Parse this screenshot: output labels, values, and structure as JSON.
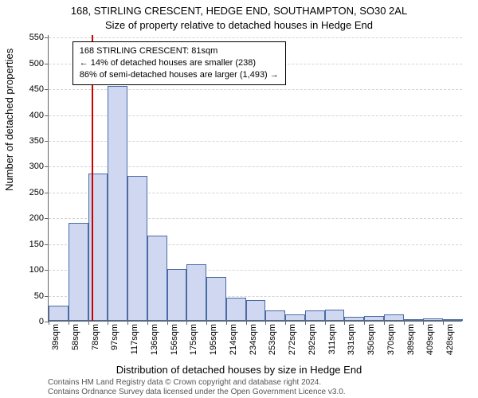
{
  "title_line1": "168, STIRLING CRESCENT, HEDGE END, SOUTHAMPTON, SO30 2AL",
  "title_line2": "Size of property relative to detached houses in Hedge End",
  "y_axis_label": "Number of detached properties",
  "x_axis_label": "Distribution of detached houses by size in Hedge End",
  "footer_line1": "Contains HM Land Registry data © Crown copyright and database right 2024.",
  "footer_line2": "Contains Ordnance Survey data licensed under the Open Government Licence v3.0.",
  "info_box": {
    "line1": "168 STIRLING CRESCENT: 81sqm",
    "line2": "← 14% of detached houses are smaller (238)",
    "line3": "86% of semi-detached houses are larger (1,493) →"
  },
  "chart": {
    "type": "histogram",
    "ylim": [
      0,
      555
    ],
    "yticks": [
      0,
      50,
      100,
      150,
      200,
      250,
      300,
      350,
      400,
      450,
      500,
      550
    ],
    "xticks": [
      "39sqm",
      "58sqm",
      "78sqm",
      "97sqm",
      "117sqm",
      "136sqm",
      "156sqm",
      "175sqm",
      "195sqm",
      "214sqm",
      "234sqm",
      "253sqm",
      "272sqm",
      "292sqm",
      "311sqm",
      "331sqm",
      "350sqm",
      "370sqm",
      "389sqm",
      "409sqm",
      "428sqm"
    ],
    "values": [
      30,
      190,
      285,
      455,
      280,
      165,
      100,
      110,
      85,
      45,
      40,
      20,
      13,
      20,
      22,
      8,
      10,
      12,
      3,
      5,
      3
    ],
    "bar_fill": "#cfd8f0",
    "bar_border": "#4a6aa5",
    "grid_color": "#aaaaaa",
    "axis_color": "#666666",
    "background": "#ffffff",
    "ref_line_color": "#cc0000",
    "ref_line_value_sqm": 81,
    "x_min_sqm": 39,
    "x_max_sqm": 447,
    "title_fontsize": 13,
    "label_fontsize": 13,
    "tick_fontsize": 11,
    "footer_fontsize": 10
  }
}
